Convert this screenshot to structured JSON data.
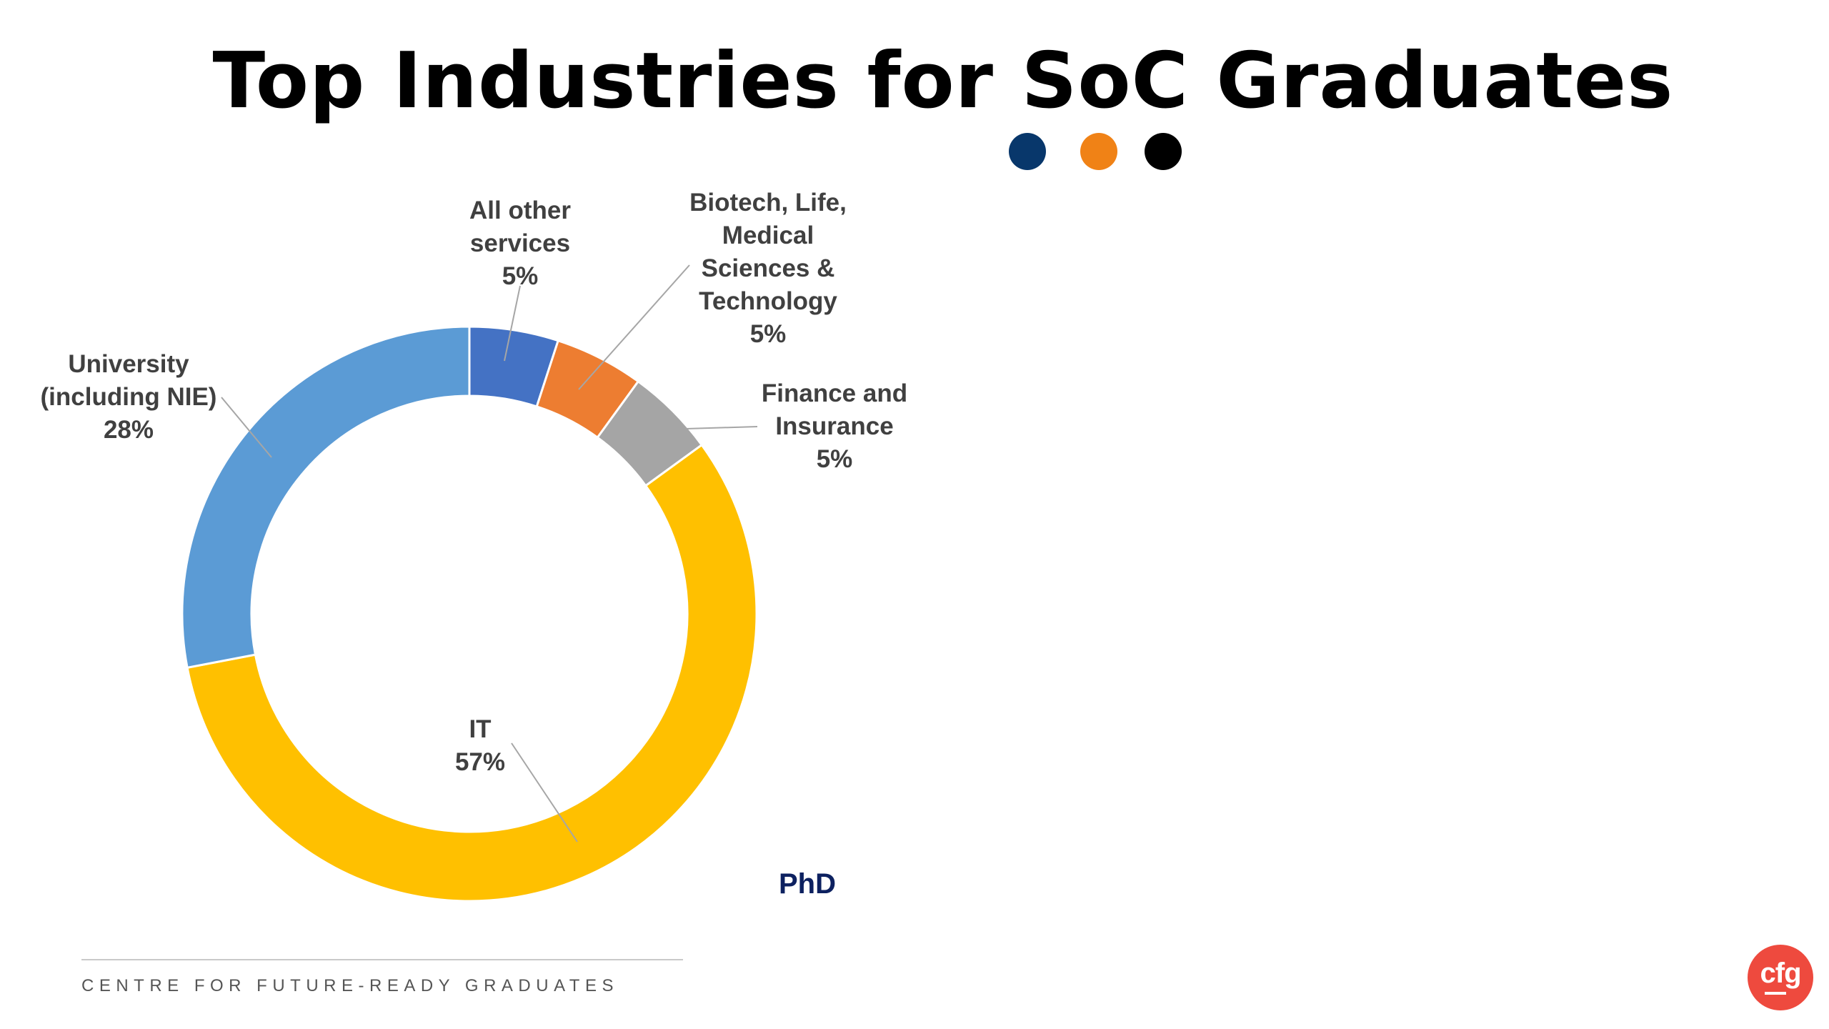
{
  "page": {
    "title": "Top Industries for SoC Graduates",
    "category_tag": "PhD",
    "footer": "CENTRE FOR FUTURE-READY GRADUATES",
    "logo_text": "cfg"
  },
  "dots": [
    {
      "name": "navy",
      "color": "#08376b"
    },
    {
      "name": "orange",
      "color": "#f08216"
    },
    {
      "name": "black",
      "color": "#000000"
    }
  ],
  "chart_data": {
    "type": "pie",
    "donut": true,
    "series": [
      {
        "name": "All other services",
        "value": 5,
        "label_lines": [
          "All other",
          "services",
          "5%"
        ],
        "color": "#4472c4"
      },
      {
        "name": "Biotech, Life, Medical Sciences & Technology",
        "value": 5,
        "label_lines": [
          "Biotech, Life,",
          "Medical",
          "Sciences &",
          "Technology",
          "5%"
        ],
        "color": "#ed7d31"
      },
      {
        "name": "Finance and Insurance",
        "value": 5,
        "label_lines": [
          "Finance and",
          "Insurance",
          "5%"
        ],
        "color": "#a5a5a5"
      },
      {
        "name": "IT",
        "value": 57,
        "label_lines": [
          "IT",
          "57%"
        ],
        "color": "#ffc000"
      },
      {
        "name": "University (including NIE)",
        "value": 28,
        "label_lines": [
          "University",
          "(including NIE)",
          "28%"
        ],
        "color": "#5b9bd5"
      }
    ]
  }
}
